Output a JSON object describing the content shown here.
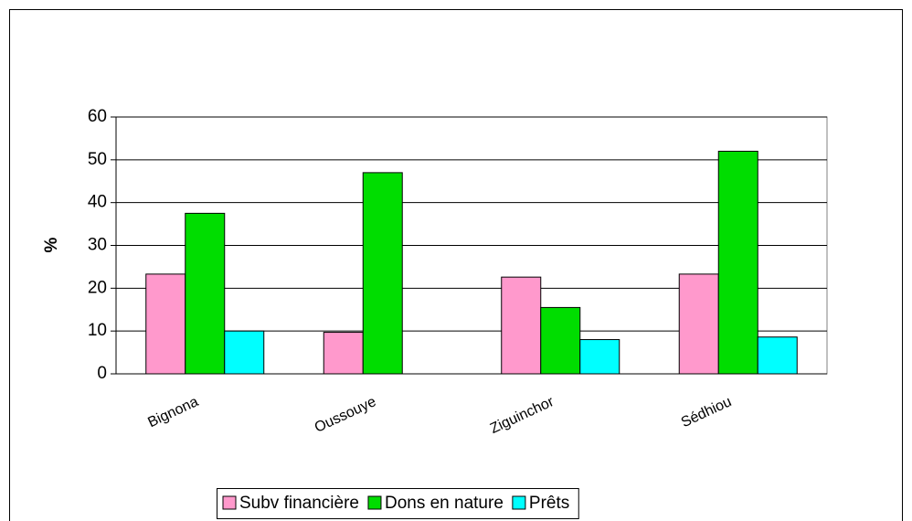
{
  "chart_data": {
    "type": "bar",
    "y_label": "%",
    "categories": [
      "Bignona",
      "Oussouye",
      "Ziguinchor",
      "Sédhiou"
    ],
    "series": [
      {
        "name": "Subv financière",
        "color": "#ff99cc",
        "values": [
          23.3,
          9.7,
          22.6,
          23.3
        ]
      },
      {
        "name": "Dons en nature",
        "color": "#00dd00",
        "values": [
          37.5,
          47,
          15.5,
          52
        ]
      },
      {
        "name": "Prêts",
        "color": "#00ffff",
        "values": [
          10,
          null,
          8,
          8.6
        ]
      }
    ],
    "ylim": [
      0,
      60
    ],
    "yticks": [
      0,
      10,
      20,
      30,
      40,
      50,
      60
    ],
    "grid": true
  }
}
